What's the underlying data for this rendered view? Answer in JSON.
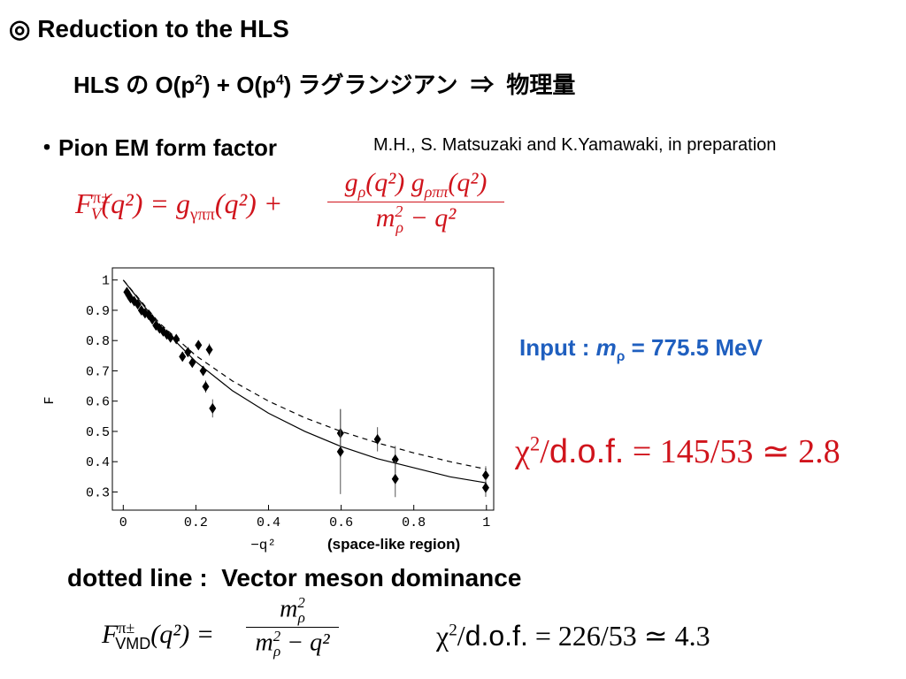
{
  "title": "◎ Reduction to the HLS",
  "subtitle": [
    "HLS の O(p",
    "2",
    ") + O(p",
    "4",
    ") ラグランジアン  ⇒  物理量"
  ],
  "bullet": "・Pion EM form factor",
  "reference": "M.H., S. Matsuzaki and K.Yamawaki, in preparation",
  "formula1": {
    "lhs": [
      "F",
      "π±",
      "V",
      "(q²) = g",
      "γππ",
      "(q²) +"
    ],
    "numerator": [
      "g",
      "ρ",
      "(q²) g",
      "ρππ",
      "(q²)"
    ],
    "denominator": [
      "m",
      "2",
      "ρ",
      " − q²"
    ]
  },
  "input": [
    "Input : ",
    "m",
    "ρ",
    " = 775.5 MeV"
  ],
  "chi2_hls": [
    "χ",
    "2",
    "/",
    "d.o.f.",
    " = 145/53 ≃ 2.8"
  ],
  "note": "dotted line :  Vector meson dominance",
  "formula2": {
    "lhs": [
      "F",
      "π±",
      "VMD",
      "(q²) ="
    ],
    "numerator": [
      "m",
      "2",
      "ρ"
    ],
    "denominator": [
      "m",
      "2",
      "ρ",
      " − q²"
    ]
  },
  "chi2_vmd": [
    "χ",
    "2",
    "/",
    "d.o.f.",
    " = 226/53 ≃ 4.3"
  ],
  "chart_data": {
    "type": "scatter",
    "ylabel": "F",
    "xlabel": "−q²",
    "xlabel_note": "(space-like region)",
    "xlim": [
      -0.03,
      1.02
    ],
    "ylim": [
      0.24,
      1.04
    ],
    "xticks": [
      0,
      0.2,
      0.4,
      0.6,
      0.8,
      1
    ],
    "yticks": [
      0.3,
      0.4,
      0.5,
      0.6,
      0.7,
      0.8,
      0.9,
      1
    ],
    "color": "#000000",
    "points": {
      "x": [
        0.01,
        0.015,
        0.02,
        0.03,
        0.04,
        0.05,
        0.06,
        0.07,
        0.08,
        0.09,
        0.1,
        0.11,
        0.12,
        0.13,
        0.146,
        0.163,
        0.178,
        0.19,
        0.207,
        0.22,
        0.227,
        0.237,
        0.246,
        0.598,
        0.598,
        0.7,
        0.749,
        0.749,
        0.998,
        0.998
      ],
      "values": [
        0.96,
        0.95,
        0.94,
        0.93,
        0.92,
        0.9,
        0.89,
        0.885,
        0.87,
        0.85,
        0.84,
        0.83,
        0.82,
        0.81,
        0.805,
        0.747,
        0.762,
        0.727,
        0.785,
        0.7,
        0.648,
        0.77,
        0.576,
        0.494,
        0.433,
        0.474,
        0.407,
        0.343,
        0.355,
        0.314
      ],
      "errors": [
        0.01,
        0.01,
        0.01,
        0.01,
        0.01,
        0.01,
        0.01,
        0.01,
        0.01,
        0.01,
        0.01,
        0.01,
        0.01,
        0.01,
        0.01,
        0.015,
        0.015,
        0.015,
        0.015,
        0.015,
        0.02,
        0.02,
        0.03,
        0.08,
        0.14,
        0.04,
        0.045,
        0.06,
        0.03,
        0.03
      ]
    },
    "lines": [
      {
        "dashed": false,
        "x": [
          0,
          0.1,
          0.2,
          0.3,
          0.4,
          0.5,
          0.6,
          0.7,
          0.8,
          0.9,
          1
        ],
        "values": [
          1,
          0.85,
          0.73,
          0.635,
          0.56,
          0.5,
          0.45,
          0.41,
          0.38,
          0.35,
          0.33
        ]
      },
      {
        "dashed": true,
        "x": [
          0,
          0.1,
          0.2,
          0.3,
          0.4,
          0.5,
          0.6,
          0.7,
          0.8,
          0.9,
          1
        ],
        "values": [
          1,
          0.857,
          0.75,
          0.667,
          0.6,
          0.545,
          0.5,
          0.462,
          0.429,
          0.4,
          0.375
        ]
      }
    ]
  }
}
